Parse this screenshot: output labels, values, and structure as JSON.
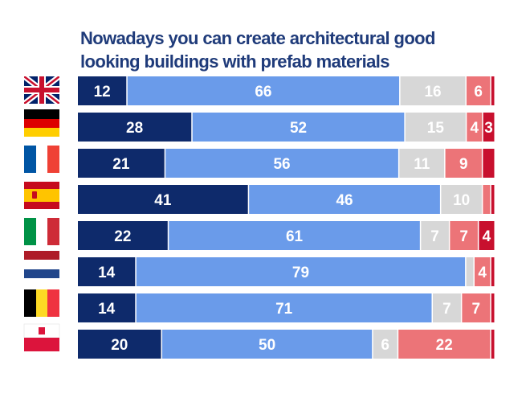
{
  "title": {
    "line1": "Nowadays you can create architectural good",
    "line2": "looking buildings  with prefab materials"
  },
  "colors": {
    "strongly_agree": "#0e2a6b",
    "agree": "#6a9bea",
    "neutral": "#d7d7d7",
    "disagree": "#ec7478",
    "strongly_disagree": "#c8102e"
  },
  "chart_data": {
    "type": "bar",
    "orientation": "horizontal",
    "stacked": true,
    "title": "Nowadays you can create architectural good looking buildings  with prefab materials",
    "categories": [
      "uk-flag",
      "germany-flag",
      "france-flag",
      "spain-flag",
      "italy-flag",
      "netherlands-flag",
      "belgium-flag",
      "poland-flag"
    ],
    "series": [
      {
        "values": [
          12,
          28,
          21,
          41,
          22,
          14,
          14,
          20
        ],
        "color": "#0e2a6b"
      },
      {
        "values": [
          66,
          52,
          56,
          46,
          61,
          79,
          71,
          50
        ],
        "color": "#6a9bea"
      },
      {
        "values": [
          16,
          15,
          11,
          10,
          7,
          2,
          7,
          6
        ],
        "color": "#d7d7d7"
      },
      {
        "values": [
          6,
          4,
          9,
          2,
          7,
          4,
          7,
          22
        ],
        "color": "#ec7478"
      },
      {
        "values": [
          1,
          3,
          3,
          1,
          4,
          1,
          1,
          1
        ],
        "color": "#c8102e"
      }
    ],
    "labels": [
      [
        "12",
        "66",
        "16",
        "6",
        ""
      ],
      [
        "28",
        "52",
        "15",
        "4",
        "3"
      ],
      [
        "21",
        "56",
        "11",
        "9",
        ""
      ],
      [
        "41",
        "46",
        "10",
        "",
        ""
      ],
      [
        "22",
        "61",
        "7",
        "7",
        "4"
      ],
      [
        "14",
        "79",
        "",
        "4",
        ""
      ],
      [
        "14",
        "71",
        "7",
        "7",
        ""
      ],
      [
        "20",
        "50",
        "6",
        "22",
        ""
      ]
    ],
    "label_colors": [
      "#ffffff",
      "#ffffff",
      "#ffffff",
      "#ffffff",
      "#ffffff"
    ],
    "xlim": [
      0,
      100
    ],
    "grid": false,
    "legend": "none"
  }
}
